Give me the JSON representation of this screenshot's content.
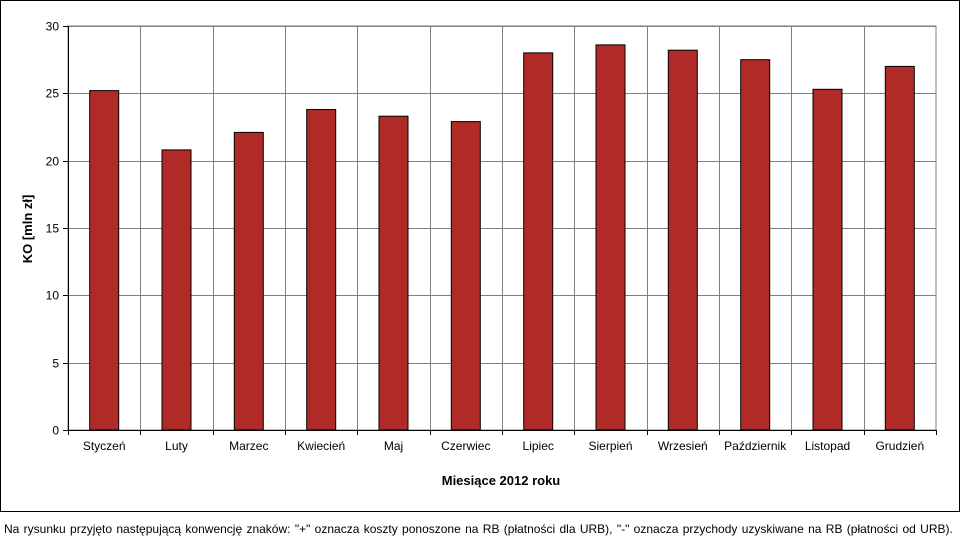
{
  "chart_data": {
    "type": "bar",
    "categories": [
      "Styczeń",
      "Luty",
      "Marzec",
      "Kwiecień",
      "Maj",
      "Czerwiec",
      "Lipiec",
      "Sierpień",
      "Wrzesień",
      "Październik",
      "Listopad",
      "Grudzień"
    ],
    "values": [
      25.2,
      20.8,
      22.1,
      23.8,
      23.3,
      22.9,
      28.0,
      28.6,
      28.2,
      27.5,
      25.3,
      27.0
    ],
    "title": "",
    "xlabel": "Miesiące 2012 roku",
    "ylabel": "KO [mln zł]",
    "ylim": [
      0,
      30
    ],
    "yticks": [
      0,
      5,
      10,
      15,
      20,
      25,
      30
    ],
    "grid": true,
    "bar_color": "#b02a27"
  },
  "footnote": "Na rysunku przyjęto następującą konwencję znaków: \"+\" oznacza koszty ponoszone na RB (płatności dla URB), \"-\" oznacza przychody uzyskiwane na RB (płatności od URB)."
}
